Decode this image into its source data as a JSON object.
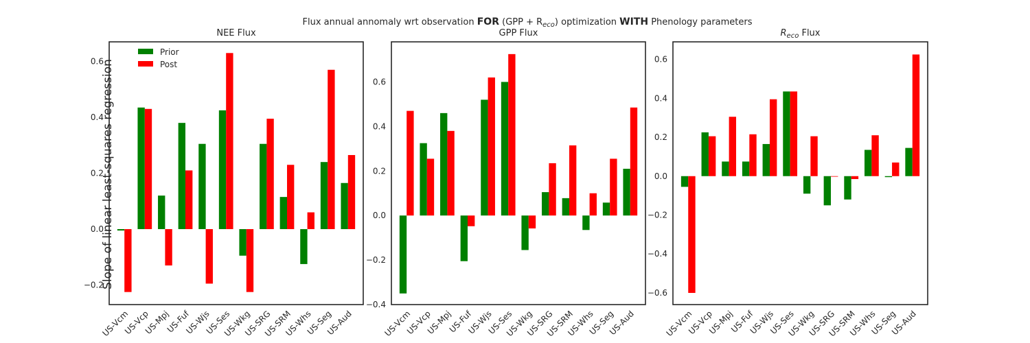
{
  "colors": {
    "prior": "#008000",
    "post": "#ff0000",
    "axes": "#262626"
  },
  "suptitle": {
    "part1": "Flux annual annomaly wrt observation ",
    "bold1": "FOR",
    "part2": " (GPP + R",
    "sub": "eco",
    "part3": ") optimization ",
    "bold2": "WITH",
    "part4": " Phenology parameters"
  },
  "ylabel": "Slope of linear least-squares regression",
  "legend": {
    "location": "upper-left",
    "prior": "Prior",
    "post": "Post"
  },
  "chart_data": [
    {
      "type": "bar",
      "title": "NEE Flux",
      "categories": [
        "US-Vcm",
        "US-Vcp",
        "US-Mpj",
        "US-Fuf",
        "US-Wjs",
        "US-Ses",
        "US-Wkg",
        "US-SRG",
        "US-SRM",
        "US-Whs",
        "US-Seg",
        "US-Aud"
      ],
      "series": [
        {
          "name": "Prior",
          "values": [
            -0.005,
            0.435,
            0.12,
            0.38,
            0.305,
            0.425,
            -0.095,
            0.305,
            0.115,
            -0.125,
            0.24,
            0.165
          ]
        },
        {
          "name": "Post",
          "values": [
            -0.225,
            0.43,
            -0.13,
            0.21,
            -0.195,
            0.63,
            -0.225,
            0.395,
            0.23,
            0.06,
            0.57,
            0.265
          ]
        }
      ],
      "ylim": [
        -0.27,
        0.67
      ],
      "yticks": [
        -0.2,
        0.0,
        0.2,
        0.4,
        0.6
      ],
      "ytick_labels": [
        "−0.2",
        "0.0",
        "0.2",
        "0.4",
        "0.6"
      ]
    },
    {
      "type": "bar",
      "title": "GPP Flux",
      "categories": [
        "US-Vcm",
        "US-Vcp",
        "US-Mpj",
        "US-Fuf",
        "US-Wjs",
        "US-Ses",
        "US-Wkg",
        "US-SRG",
        "US-SRM",
        "US-Whs",
        "US-Seg",
        "US-Aud"
      ],
      "series": [
        {
          "name": "Prior",
          "values": [
            -0.35,
            0.325,
            0.46,
            -0.205,
            0.52,
            0.6,
            -0.155,
            0.105,
            0.078,
            -0.065,
            0.058,
            0.21
          ]
        },
        {
          "name": "Post",
          "values": [
            0.47,
            0.255,
            0.38,
            -0.048,
            0.62,
            0.725,
            -0.058,
            0.235,
            0.315,
            0.1,
            0.255,
            0.485
          ]
        }
      ],
      "ylim": [
        -0.4,
        0.78
      ],
      "yticks": [
        -0.4,
        -0.2,
        0.0,
        0.2,
        0.4,
        0.6
      ],
      "ytick_labels": [
        "−0.4",
        "−0.2",
        "0.0",
        "0.2",
        "0.4",
        "0.6"
      ]
    },
    {
      "type": "bar",
      "title_parts": {
        "r": "R",
        "sub": "eco",
        "rest": " Flux"
      },
      "categories": [
        "US-Vcm",
        "US-Vcp",
        "US-Mpj",
        "US-Fuf",
        "US-Wjs",
        "US-Ses",
        "US-Wkg",
        "US-SRG",
        "US-SRM",
        "US-Whs",
        "US-Seg",
        "US-Aud"
      ],
      "series": [
        {
          "name": "Prior",
          "values": [
            -0.055,
            0.225,
            0.075,
            0.075,
            0.165,
            0.435,
            -0.09,
            -0.15,
            -0.12,
            0.135,
            -0.005,
            0.145
          ]
        },
        {
          "name": "Post",
          "values": [
            -0.6,
            0.205,
            0.305,
            0.215,
            0.395,
            0.435,
            0.205,
            0.0,
            -0.015,
            0.21,
            0.07,
            0.625
          ]
        }
      ],
      "ylim": [
        -0.66,
        0.69
      ],
      "yticks": [
        -0.6,
        -0.4,
        -0.2,
        0.0,
        0.2,
        0.4,
        0.6
      ],
      "ytick_labels": [
        "−0.6",
        "−0.4",
        "−0.2",
        "0.0",
        "0.2",
        "0.4",
        "0.6"
      ]
    }
  ]
}
